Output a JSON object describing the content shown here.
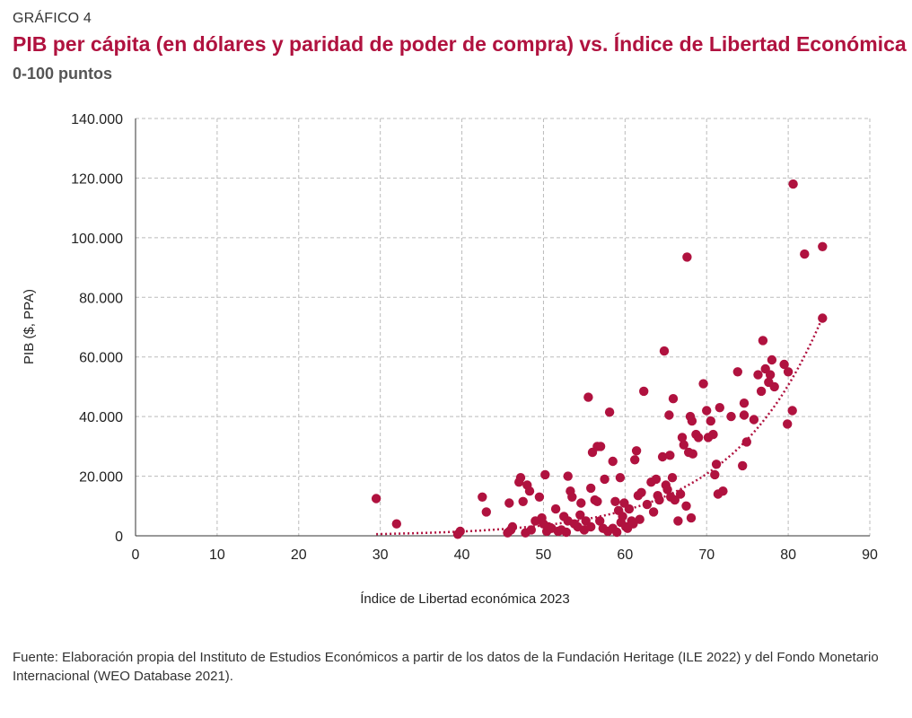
{
  "header": {
    "kicker": "GRÁFICO 4",
    "title": "PIB per cápita (en dólares y paridad de poder de compra) vs. Índice de Libertad Económica",
    "subtitle": "0-100 puntos"
  },
  "footer": {
    "source": "Fuente: Elaboración propia del Instituto de Estudios Económicos a partir de los datos de la Fundación Heritage (ILE 2022) y del Fondo Monetario Internacional (WEO Database 2021)."
  },
  "colors": {
    "point": "#b0123f",
    "trend": "#b0123f",
    "grid": "#bbbbbb"
  },
  "chart_data": {
    "type": "scatter",
    "xlabel": "Índice de Libertad económica 2023",
    "ylabel": "PIB ($, PPA)",
    "xlim": [
      0,
      90
    ],
    "ylim": [
      0,
      140000
    ],
    "xticks": [
      0,
      10,
      20,
      30,
      40,
      50,
      60,
      70,
      80,
      90
    ],
    "yticks": [
      0,
      20000,
      40000,
      60000,
      80000,
      100000,
      120000,
      140000
    ],
    "ytick_labels": [
      "0",
      "20.000",
      "40.000",
      "60.000",
      "80.000",
      "100.000",
      "120.000",
      "140.000"
    ],
    "grid": true,
    "trendline": {
      "type": "exponential",
      "a": 41.5,
      "b": 0.0888,
      "x_range": [
        29.5,
        84.2
      ]
    },
    "points": [
      [
        29.5,
        12500
      ],
      [
        32.0,
        4000
      ],
      [
        39.5,
        500
      ],
      [
        39.8,
        1500
      ],
      [
        42.5,
        13000
      ],
      [
        43.0,
        8000
      ],
      [
        45.8,
        11000
      ],
      [
        45.6,
        1000
      ],
      [
        46.0,
        2000
      ],
      [
        46.2,
        3000
      ],
      [
        47.2,
        19500
      ],
      [
        47.0,
        18000
      ],
      [
        47.5,
        11500
      ],
      [
        48.0,
        17000
      ],
      [
        47.8,
        1000
      ],
      [
        48.5,
        2000
      ],
      [
        48.3,
        15000
      ],
      [
        49.0,
        5000
      ],
      [
        49.5,
        13000
      ],
      [
        49.8,
        6000
      ],
      [
        50.0,
        4000
      ],
      [
        50.2,
        20500
      ],
      [
        50.4,
        1500
      ],
      [
        50.6,
        3000
      ],
      [
        51.0,
        2500
      ],
      [
        51.8,
        1500
      ],
      [
        51.5,
        9000
      ],
      [
        52.2,
        2000
      ],
      [
        52.5,
        6500
      ],
      [
        53.0,
        20000
      ],
      [
        53.3,
        15000
      ],
      [
        53.5,
        13000
      ],
      [
        53.0,
        5000
      ],
      [
        52.8,
        1200
      ],
      [
        53.8,
        4000
      ],
      [
        54.2,
        3000
      ],
      [
        54.5,
        7000
      ],
      [
        54.6,
        11000
      ],
      [
        55.0,
        2000
      ],
      [
        55.2,
        5000
      ],
      [
        55.5,
        46500
      ],
      [
        55.8,
        16000
      ],
      [
        55.8,
        3000
      ],
      [
        56.0,
        28000
      ],
      [
        56.3,
        12000
      ],
      [
        56.6,
        30000
      ],
      [
        56.6,
        11500
      ],
      [
        56.9,
        5000
      ],
      [
        57.0,
        30000
      ],
      [
        57.3,
        2500
      ],
      [
        57.5,
        19000
      ],
      [
        57.9,
        1500
      ],
      [
        58.1,
        41500
      ],
      [
        58.5,
        25000
      ],
      [
        58.5,
        2500
      ],
      [
        58.8,
        11500
      ],
      [
        59.0,
        1200
      ],
      [
        59.2,
        8500
      ],
      [
        59.4,
        19500
      ],
      [
        59.5,
        4500
      ],
      [
        59.7,
        6500
      ],
      [
        59.9,
        11000
      ],
      [
        60.1,
        3000
      ],
      [
        60.3,
        2500
      ],
      [
        60.5,
        9000
      ],
      [
        60.8,
        5000
      ],
      [
        61.0,
        4000
      ],
      [
        61.2,
        25500
      ],
      [
        61.4,
        28500
      ],
      [
        61.6,
        13500
      ],
      [
        61.8,
        5500
      ],
      [
        62.0,
        14500
      ],
      [
        62.3,
        48500
      ],
      [
        62.7,
        10500
      ],
      [
        63.2,
        18000
      ],
      [
        63.5,
        8000
      ],
      [
        63.8,
        19000
      ],
      [
        64.0,
        13500
      ],
      [
        64.2,
        12000
      ],
      [
        64.6,
        26500
      ],
      [
        64.8,
        62000
      ],
      [
        65.0,
        17000
      ],
      [
        65.2,
        15500
      ],
      [
        65.4,
        40500
      ],
      [
        65.5,
        27000
      ],
      [
        65.6,
        13000
      ],
      [
        65.8,
        19500
      ],
      [
        65.9,
        46000
      ],
      [
        66.1,
        12000
      ],
      [
        66.5,
        5000
      ],
      [
        66.8,
        14000
      ],
      [
        67.0,
        33000
      ],
      [
        67.2,
        30500
      ],
      [
        67.5,
        10000
      ],
      [
        67.6,
        93500
      ],
      [
        67.8,
        28000
      ],
      [
        68.0,
        40000
      ],
      [
        68.1,
        6000
      ],
      [
        68.2,
        38500
      ],
      [
        68.3,
        27500
      ],
      [
        68.7,
        34000
      ],
      [
        69.0,
        33000
      ],
      [
        69.6,
        51000
      ],
      [
        70.0,
        42000
      ],
      [
        70.2,
        33000
      ],
      [
        70.5,
        38500
      ],
      [
        70.8,
        34000
      ],
      [
        71.0,
        20500
      ],
      [
        71.2,
        24000
      ],
      [
        71.4,
        14000
      ],
      [
        71.6,
        43000
      ],
      [
        72.0,
        15000
      ],
      [
        73.0,
        40000
      ],
      [
        73.8,
        55000
      ],
      [
        74.4,
        23500
      ],
      [
        74.6,
        40500
      ],
      [
        74.6,
        44500
      ],
      [
        74.9,
        31500
      ],
      [
        75.8,
        39000
      ],
      [
        76.3,
        54000
      ],
      [
        76.7,
        48500
      ],
      [
        76.9,
        65500
      ],
      [
        77.2,
        56000
      ],
      [
        77.6,
        51500
      ],
      [
        77.8,
        54000
      ],
      [
        78.0,
        59000
      ],
      [
        78.3,
        50000
      ],
      [
        79.5,
        57500
      ],
      [
        79.9,
        37500
      ],
      [
        80.0,
        55000
      ],
      [
        80.5,
        42000
      ],
      [
        80.6,
        118000
      ],
      [
        82.0,
        94500
      ],
      [
        84.2,
        97000
      ],
      [
        84.2,
        73000
      ]
    ]
  }
}
